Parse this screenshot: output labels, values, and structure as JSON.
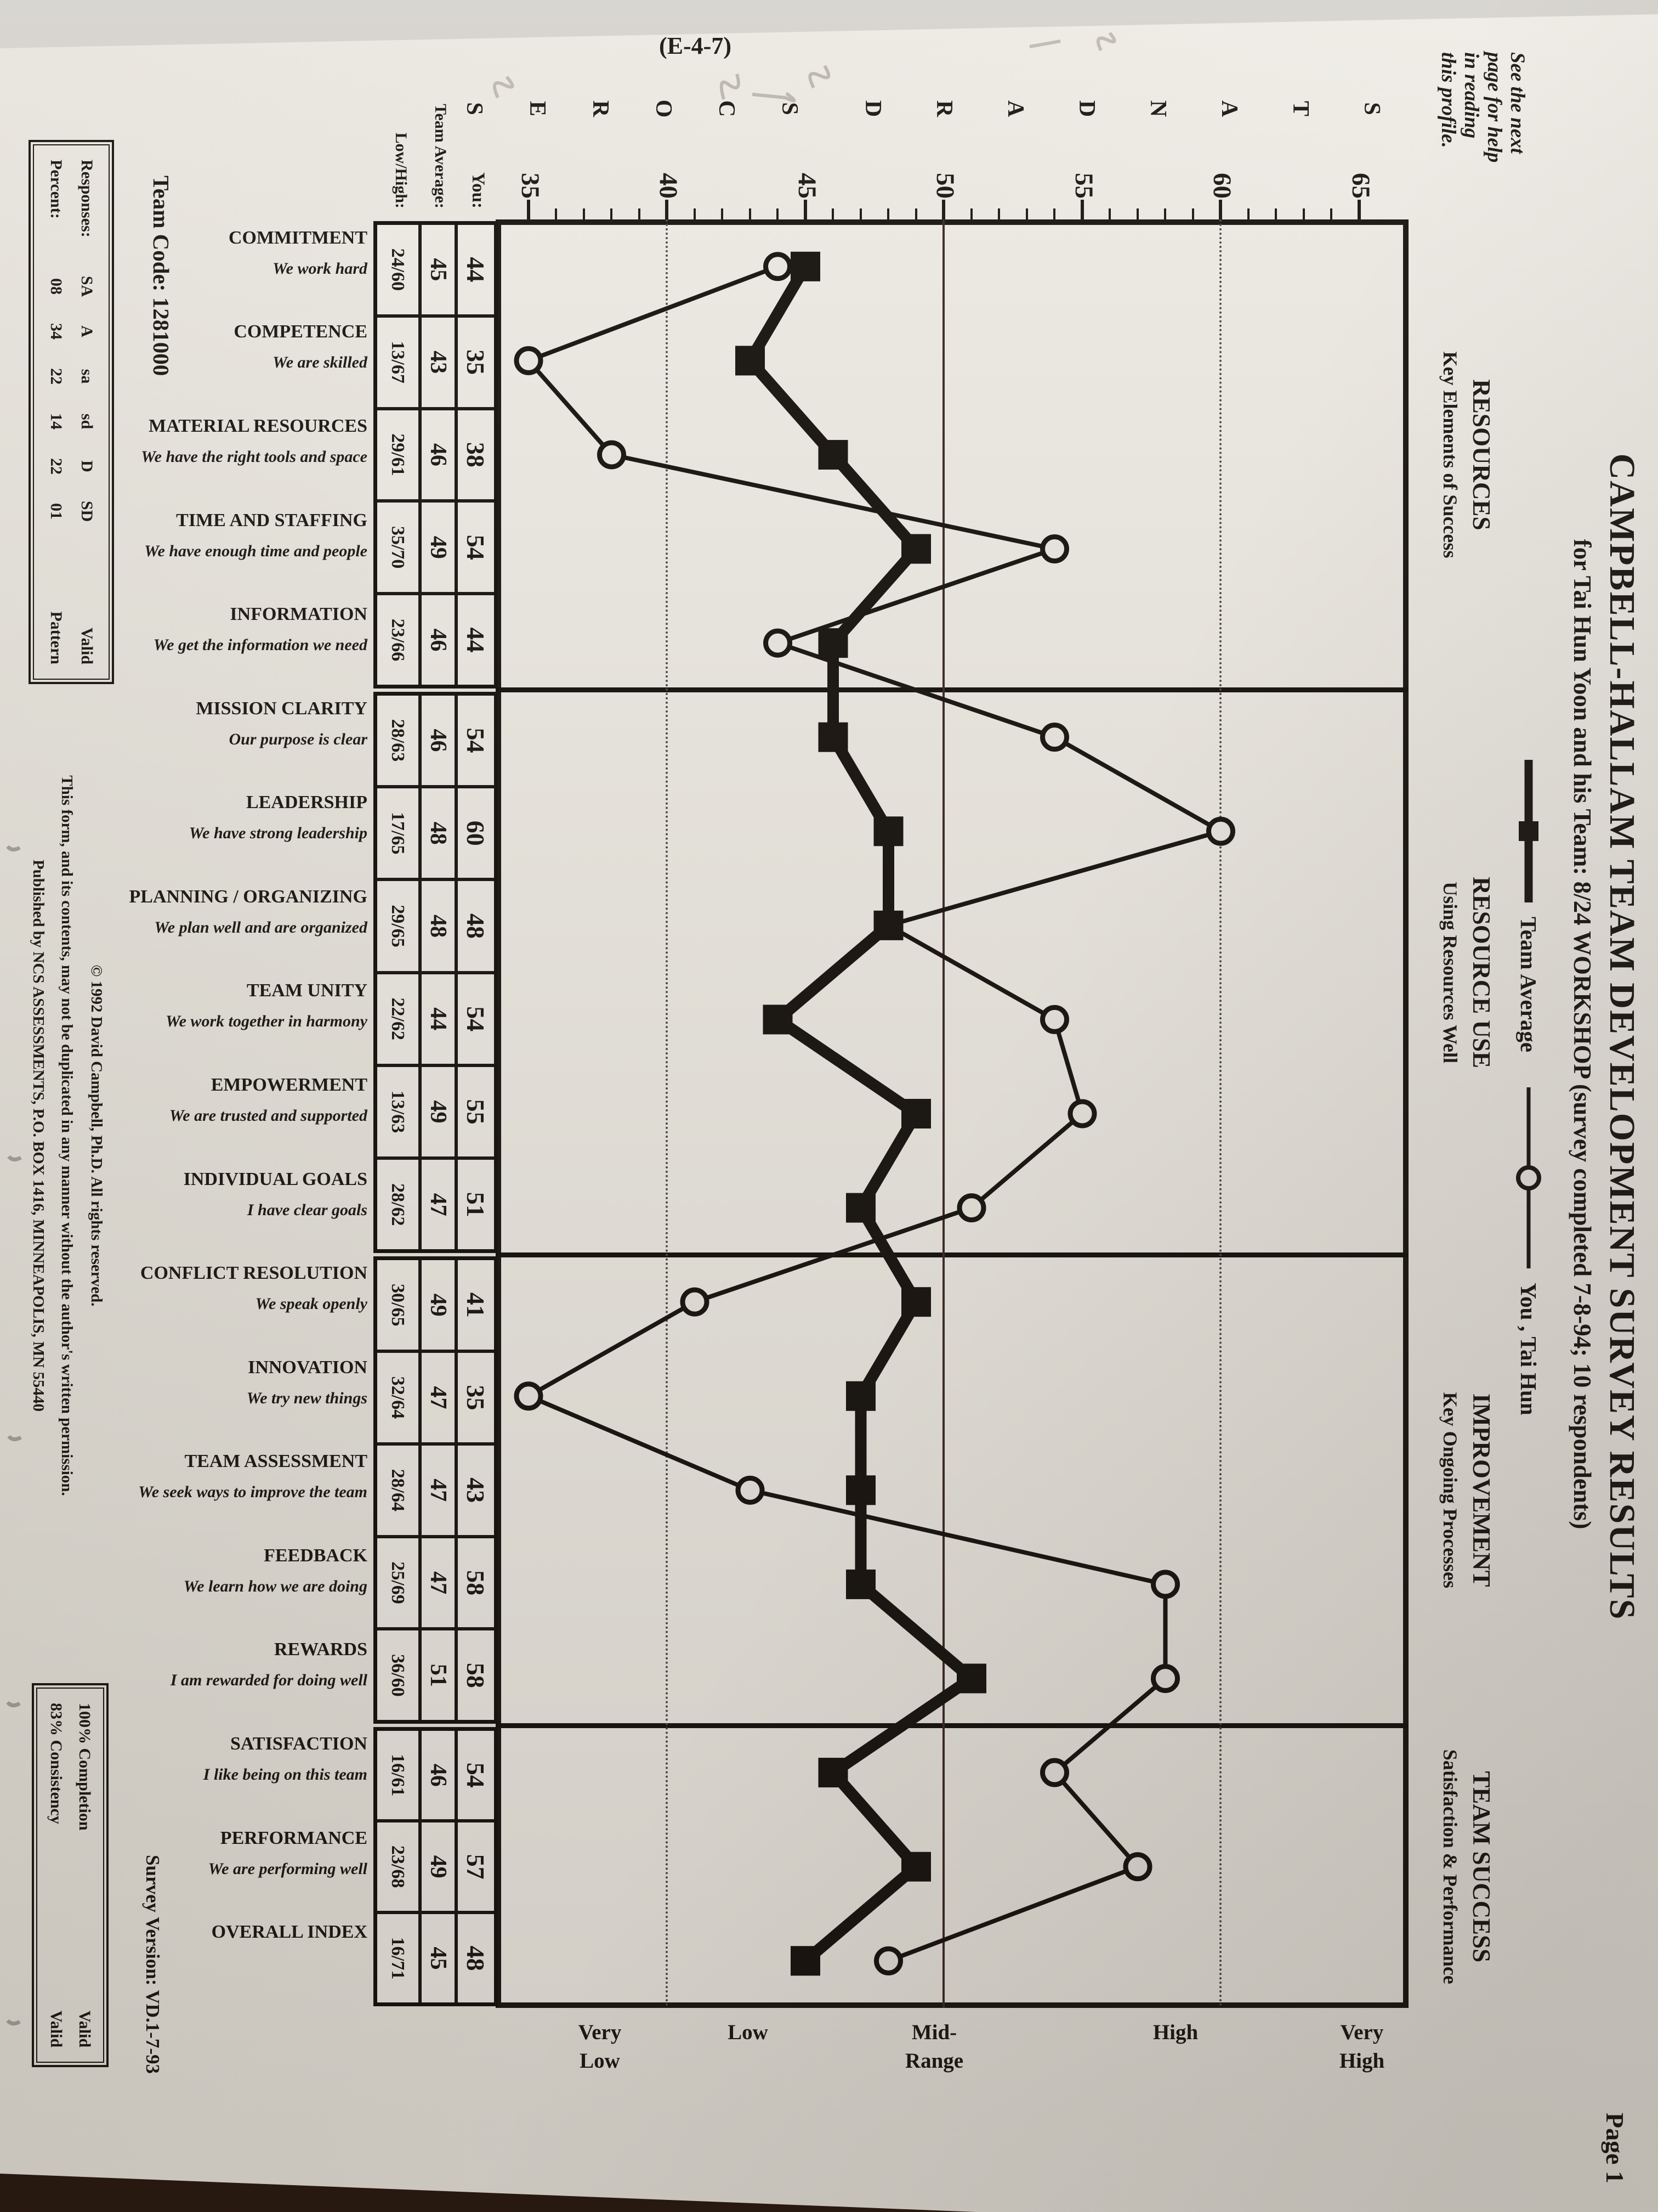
{
  "page": {
    "page_number": "Page 1",
    "note_lines": [
      "See the next",
      "page for help",
      "in reading",
      "this profile."
    ],
    "handwritten_code": "(E-4-7)"
  },
  "header": {
    "title": "CAMPBELL-HALLAM TEAM DEVELOPMENT SURVEY RESULTS",
    "subtitle": "for Tai Hun Yoon and his Team: 8/24 WORKSHOP (survey completed 7-8-94; 10 respondents)",
    "legend": [
      {
        "label": "Team Average",
        "marker": "filled-square-icon",
        "line": "thick"
      },
      {
        "label": "You , Tai Hun",
        "marker": "open-circle-icon",
        "line": "thin"
      }
    ]
  },
  "axis": {
    "label_word_1": "STANDARD",
    "label_word_2": "SCORES",
    "major_ticks": [
      65,
      60,
      55,
      50,
      45,
      40,
      35
    ],
    "band_labels": [
      [
        "Very",
        "High"
      ],
      [
        "High"
      ],
      [
        "Mid-",
        "Range"
      ],
      [
        "Low"
      ],
      [
        "Very",
        "Low"
      ]
    ]
  },
  "groups": [
    {
      "name": "RESOURCES",
      "subtitle": "Key Elements of Success",
      "span": 5
    },
    {
      "name": "RESOURCE USE",
      "subtitle": "Using Resources Well",
      "span": 6
    },
    {
      "name": "IMPROVEMENT",
      "subtitle": "Key Ongoing Processes",
      "span": 5
    },
    {
      "name": "TEAM SUCCESS",
      "subtitle": "Satisfaction & Performance",
      "span": 3
    }
  ],
  "table_headers": {
    "you": "You:",
    "team": "Team Average:",
    "low_high": "Low/High:"
  },
  "rows": [
    {
      "name": "COMMITMENT",
      "subtitle": "We work hard",
      "you": 44,
      "team": 45,
      "low_high": "24/60"
    },
    {
      "name": "COMPETENCE",
      "subtitle": "We are skilled",
      "you": 35,
      "team": 43,
      "low_high": "13/67"
    },
    {
      "name": "MATERIAL RESOURCES",
      "subtitle": "We have the right tools and space",
      "you": 38,
      "team": 46,
      "low_high": "29/61"
    },
    {
      "name": "TIME AND STAFFING",
      "subtitle": "We have enough time and people",
      "you": 54,
      "team": 49,
      "low_high": "35/70"
    },
    {
      "name": "INFORMATION",
      "subtitle": "We get the information we need",
      "you": 44,
      "team": 46,
      "low_high": "23/66"
    },
    {
      "name": "MISSION CLARITY",
      "subtitle": "Our purpose is clear",
      "you": 54,
      "team": 46,
      "low_high": "28/63"
    },
    {
      "name": "LEADERSHIP",
      "subtitle": "We have strong leadership",
      "you": 60,
      "team": 48,
      "low_high": "17/65"
    },
    {
      "name": "PLANNING / ORGANIZING",
      "subtitle": "We plan well and are organized",
      "you": 48,
      "team": 48,
      "low_high": "29/65"
    },
    {
      "name": "TEAM UNITY",
      "subtitle": "We work together in harmony",
      "you": 54,
      "team": 44,
      "low_high": "22/62"
    },
    {
      "name": "EMPOWERMENT",
      "subtitle": "We are trusted and supported",
      "you": 55,
      "team": 49,
      "low_high": "13/63"
    },
    {
      "name": "INDIVIDUAL GOALS",
      "subtitle": "I have clear goals",
      "you": 51,
      "team": 47,
      "low_high": "28/62"
    },
    {
      "name": "CONFLICT RESOLUTION",
      "subtitle": "We speak openly",
      "you": 41,
      "team": 49,
      "low_high": "30/65"
    },
    {
      "name": "INNOVATION",
      "subtitle": "We try new things",
      "you": 35,
      "team": 47,
      "low_high": "32/64"
    },
    {
      "name": "TEAM ASSESSMENT",
      "subtitle": "We seek ways to improve the team",
      "you": 43,
      "team": 47,
      "low_high": "28/64"
    },
    {
      "name": "FEEDBACK",
      "subtitle": "We learn how we are doing",
      "you": 58,
      "team": 47,
      "low_high": "25/69"
    },
    {
      "name": "REWARDS",
      "subtitle": "I am rewarded for doing well",
      "you": 58,
      "team": 51,
      "low_high": "36/60"
    },
    {
      "name": "SATISFACTION",
      "subtitle": "I like being on this team",
      "you": 54,
      "team": 46,
      "low_high": "16/61"
    },
    {
      "name": "PERFORMANCE",
      "subtitle": "We are performing well",
      "you": 57,
      "team": 49,
      "low_high": "23/68"
    },
    {
      "name": "OVERALL INDEX",
      "subtitle": "",
      "you": 48,
      "team": 45,
      "low_high": "16/71"
    }
  ],
  "footer": {
    "team_code": "Team Code: 1281000",
    "responses_row": {
      "label": "Responses:",
      "values": [
        "SA",
        "A",
        "sa",
        "sd",
        "D",
        "SD"
      ],
      "status": "Valid"
    },
    "percent_row": {
      "label": "Percent:",
      "values": [
        "08",
        "34",
        "22",
        "14",
        "22",
        "01"
      ],
      "status": "Pattern"
    },
    "copyright": "© 1992 David Campbell, Ph.D.  All rights reserved.",
    "duplication": "This form, and its contents, may not be duplicated in any manner without the author's written permission.",
    "publisher": "Published by NCS ASSESSMENTS, P.O. BOX 1416, MINNEAPOLIS, MN 55440",
    "survey_version": "Survey Version: VD.1-7-93",
    "completion": [
      [
        "100% Completion",
        "Valid"
      ],
      [
        "83% Consistency",
        "Valid"
      ]
    ]
  },
  "chart_data": {
    "type": "line",
    "title": "CAMPBELL-HALLAM TEAM DEVELOPMENT SURVEY RESULTS",
    "ylabel": "STANDARD SCORES",
    "ylim": [
      35,
      65
    ],
    "yticks": [
      35,
      40,
      45,
      50,
      55,
      60,
      65
    ],
    "shaded_bands": [
      [
        35,
        45.5
      ],
      [
        54.5,
        65
      ]
    ],
    "reference_lines": {
      "solid": [
        50
      ],
      "dotted": [
        40,
        60
      ]
    },
    "categories": [
      "COMMITMENT",
      "COMPETENCE",
      "MATERIAL RESOURCES",
      "TIME AND STAFFING",
      "INFORMATION",
      "MISSION CLARITY",
      "LEADERSHIP",
      "PLANNING / ORGANIZING",
      "TEAM UNITY",
      "EMPOWERMENT",
      "INDIVIDUAL GOALS",
      "CONFLICT RESOLUTION",
      "INNOVATION",
      "TEAM ASSESSMENT",
      "FEEDBACK",
      "REWARDS",
      "SATISFACTION",
      "PERFORMANCE",
      "OVERALL INDEX"
    ],
    "series": [
      {
        "name": "You , Tai Hun",
        "marker": "open-circle",
        "line": "thin",
        "values": [
          44,
          35,
          38,
          54,
          44,
          54,
          60,
          48,
          54,
          55,
          51,
          41,
          35,
          43,
          58,
          58,
          54,
          57,
          48
        ]
      },
      {
        "name": "Team Average",
        "marker": "filled-square",
        "line": "thick",
        "values": [
          45,
          43,
          46,
          49,
          46,
          46,
          48,
          48,
          44,
          49,
          47,
          49,
          47,
          47,
          47,
          51,
          46,
          49,
          45
        ]
      }
    ],
    "low_high_ranges": [
      "24/60",
      "13/67",
      "29/61",
      "35/70",
      "23/66",
      "28/63",
      "17/65",
      "29/65",
      "22/62",
      "13/63",
      "28/62",
      "30/65",
      "32/64",
      "28/64",
      "25/69",
      "36/60",
      "16/61",
      "23/68",
      "16/71"
    ]
  }
}
